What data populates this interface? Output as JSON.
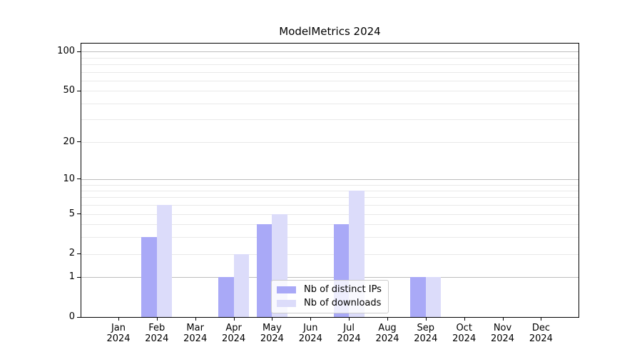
{
  "chart_data": {
    "type": "bar",
    "title": "ModelMetrics 2024",
    "x": [
      {
        "month": "Jan",
        "year": "2024"
      },
      {
        "month": "Feb",
        "year": "2024"
      },
      {
        "month": "Mar",
        "year": "2024"
      },
      {
        "month": "Apr",
        "year": "2024"
      },
      {
        "month": "May",
        "year": "2024"
      },
      {
        "month": "Jun",
        "year": "2024"
      },
      {
        "month": "Jul",
        "year": "2024"
      },
      {
        "month": "Aug",
        "year": "2024"
      },
      {
        "month": "Sep",
        "year": "2024"
      },
      {
        "month": "Oct",
        "year": "2024"
      },
      {
        "month": "Nov",
        "year": "2024"
      },
      {
        "month": "Dec",
        "year": "2024"
      }
    ],
    "series": [
      {
        "name": "Nb of distinct IPs",
        "color": "#a9a9f7",
        "values": [
          0,
          3,
          0,
          1,
          4,
          0,
          4,
          0,
          1,
          0,
          0,
          0
        ]
      },
      {
        "name": "Nb of downloads",
        "color": "#dcdcfa",
        "values": [
          0,
          6,
          0,
          2,
          5,
          0,
          8,
          0,
          1,
          0,
          0,
          0
        ]
      }
    ],
    "y_axis": {
      "scale": "log1p",
      "range": [
        0,
        115
      ],
      "ticks": [
        0,
        1,
        2,
        5,
        10,
        20,
        50,
        100
      ],
      "major_gridlines": [
        1,
        10,
        100
      ],
      "minor_gridlines": [
        2,
        3,
        4,
        5,
        6,
        7,
        8,
        9,
        20,
        30,
        40,
        50,
        60,
        70,
        80,
        90
      ]
    },
    "grid": true,
    "legend_position": "lower center"
  },
  "colors": {
    "major_grid": "#bdbdbd",
    "minor_grid": "#e9e9e9",
    "axis": "#000000",
    "text": "#000000",
    "background": "#ffffff"
  }
}
